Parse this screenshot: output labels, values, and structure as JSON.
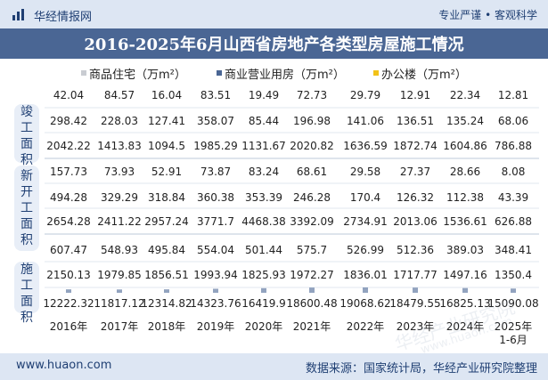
{
  "header": {
    "brand": "华经情报网",
    "slogan": "专业严谨 • 客观科学"
  },
  "chart_data": {
    "type": "table",
    "title": "2016-2025年6月山西省房地产各类型房屋施工情况",
    "categories": [
      "2016年",
      "2017年",
      "2018年",
      "2019年",
      "2020年",
      "2021年",
      "2022年",
      "2023年",
      "2024年",
      "2025年\n1-6月"
    ],
    "legend": [
      "商品住宅（万m²）",
      "商业营业用房（万m²）",
      "办公楼（万m²）"
    ],
    "groups": [
      {
        "label": "竣工面积",
        "series": [
          {
            "name": "办公楼（万m²）",
            "values": [
              42.04,
              84.57,
              16.04,
              83.51,
              19.49,
              72.73,
              29.79,
              12.91,
              22.34,
              12.81
            ]
          },
          {
            "name": "商业营业用房（万m²）",
            "values": [
              298.42,
              228.03,
              127.41,
              358.07,
              85.44,
              196.98,
              141.06,
              136.51,
              135.24,
              68.06
            ]
          },
          {
            "name": "商品住宅（万m²）",
            "values": [
              2042.22,
              1413.83,
              1094.5,
              1985.29,
              1131.67,
              2020.82,
              1636.59,
              1872.74,
              1604.86,
              786.88
            ]
          }
        ]
      },
      {
        "label": "新开工面积",
        "series": [
          {
            "name": "办公楼（万m²）",
            "values": [
              157.73,
              73.93,
              52.91,
              73.87,
              83.24,
              68.61,
              29.58,
              27.37,
              28.66,
              8.08
            ]
          },
          {
            "name": "商业营业用房（万m²）",
            "values": [
              494.28,
              329.29,
              318.84,
              360.38,
              353.39,
              246.28,
              170.4,
              126.32,
              112.38,
              43.39
            ]
          },
          {
            "name": "商品住宅（万m²）",
            "values": [
              2654.28,
              2411.22,
              2957.24,
              3771.7,
              4468.38,
              3392.09,
              2734.91,
              2013.06,
              1536.61,
              626.88
            ]
          }
        ]
      },
      {
        "label": "施工面积",
        "series": [
          {
            "name": "办公楼（万m²）",
            "values": [
              607.47,
              548.93,
              495.84,
              554.04,
              501.44,
              575.7,
              526.99,
              512.36,
              389.03,
              348.41
            ]
          },
          {
            "name": "商业营业用房（万m²）",
            "values": [
              2150.13,
              1979.85,
              1856.51,
              1993.94,
              1825.93,
              1972.27,
              1836.01,
              1717.77,
              1497.16,
              1350.4
            ]
          },
          {
            "name": "商品住宅（万m²）",
            "values": [
              12222.32,
              11817.12,
              12314.82,
              14323.76,
              16419.9,
              18600.48,
              19068.62,
              18479.55,
              16825.13,
              15090.08
            ]
          }
        ]
      }
    ],
    "colors": {
      "住宅": "#c9ccd2",
      "商业": "#4a6694",
      "办公": "#f2c218"
    }
  },
  "footer": {
    "url": "www.huaon.com",
    "source": "数据来源：国家统计局，华经产业研究院整理"
  },
  "watermarks": [
    "华经产业研究院",
    "www.huaon.com"
  ]
}
